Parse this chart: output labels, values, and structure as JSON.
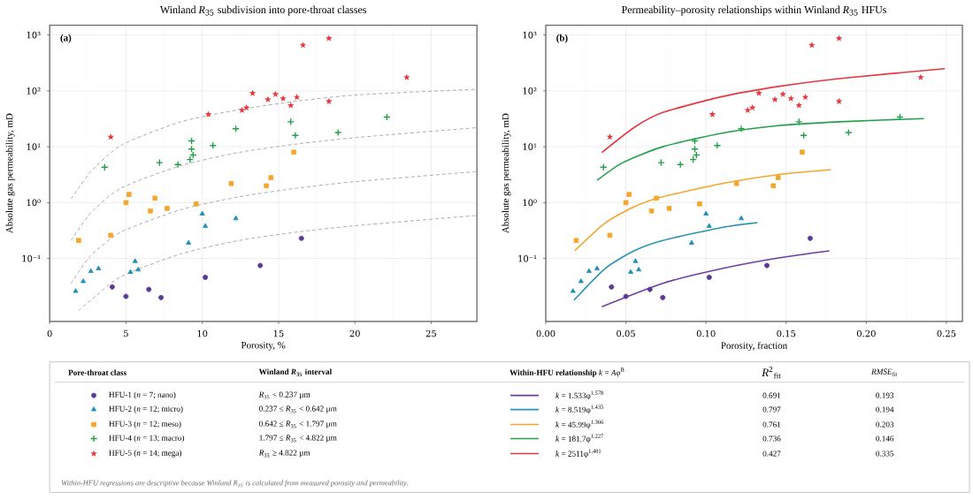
{
  "chart_data": [
    {
      "type": "scatter",
      "title": "Winland *R*$_{35}$ subdivision into pore-throat classes",
      "xlabel": "Porosity, %",
      "ylabel": "Absolute gas permeability, mD",
      "log": "y",
      "grid": true,
      "legend": "bottom",
      "legend_title": "Pore-throat class",
      "xlim": [
        0,
        28
      ],
      "ylim": [
        0.0075,
        1500
      ],
      "xticks": [
        0,
        5,
        10,
        15,
        20,
        25
      ],
      "yticks": [
        {
          "value": 0.1,
          "label": "10⁻¹"
        },
        {
          "value": 1,
          "label": "10⁰"
        },
        {
          "value": 10,
          "label": "10¹"
        },
        {
          "value": 100,
          "label": "10²"
        },
        {
          "value": 1000,
          "label": "10³"
        }
      ],
      "annotations": [
        "(a)",
        "Winland *R*$_{35}$ interval",
        "*R*$_{35}$ < 0.237 µm",
        "0.237 ≤ *R*$_{35}$ < 0.642 µm",
        "0.642 ≤ *R*$_{35}$ < 1.797 µm",
        "1.797 ≤ *R*$_{35}$ < 4.822 µm",
        "*R*$_{35}$ ≥ 4.822 µm",
        "Within-HFU regressions are descriptive because Winland R$_{35}$ is calculated from measured porosity and permeability."
      ],
      "series": [
        {
          "type": "line",
          "color": "#aaaaaa",
          "line_style": "dashed",
          "marker": "none",
          "x": [
            1.4,
            2.7,
            4.7,
            8.6,
            12.4,
            16.3,
            20.2,
            28
          ],
          "values": [
            1.16,
            3.6,
            10.7,
            28,
            46,
            66,
            85,
            107
          ]
        },
        {
          "type": "line",
          "color": "#aaaaaa",
          "line_style": "dashed",
          "marker": "none",
          "x": [
            1.4,
            2.7,
            4.7,
            8.6,
            12.4,
            16.3,
            20.2,
            28
          ],
          "values": [
            0.21,
            0.66,
            1.83,
            4.6,
            7.9,
            11.3,
            14.7,
            22
          ]
        },
        {
          "type": "line",
          "color": "#aaaaaa",
          "line_style": "dashed",
          "marker": "none",
          "x": [
            1.4,
            2.7,
            4.7,
            8.6,
            12.4,
            16.3,
            20.2,
            28
          ],
          "values": [
            0.036,
            0.113,
            0.3,
            0.75,
            1.27,
            1.83,
            2.4,
            3.6
          ]
        },
        {
          "type": "line",
          "color": "#aaaaaa",
          "line_style": "dashed",
          "marker": "none",
          "x": [
            1.9,
            2.7,
            4.7,
            8.6,
            12.4,
            16.3,
            20.2,
            28
          ],
          "values": [
            0.0116,
            0.018,
            0.048,
            0.121,
            0.21,
            0.3,
            0.39,
            0.59
          ]
        },
        {
          "name": "HFU-1 (*n* = 7; nano)",
          "type": "scatter",
          "color": "#5b3a96",
          "marker": "circle",
          "x": [
            4.1,
            5.0,
            6.5,
            7.3,
            10.2,
            13.8,
            16.5
          ],
          "values": [
            0.031,
            0.021,
            0.028,
            0.02,
            0.046,
            0.075,
            0.23
          ]
        },
        {
          "name": "HFU-2 (*n* = 12; micro)",
          "type": "scatter",
          "color": "#2090b5",
          "marker": "triangle",
          "x": [
            1.7,
            2.2,
            2.7,
            3.2,
            5.3,
            5.6,
            5.8,
            9.1,
            10.0,
            10.2,
            12.2
          ],
          "values": [
            0.026,
            0.039,
            0.059,
            0.066,
            0.057,
            0.089,
            0.063,
            0.19,
            0.63,
            0.38,
            0.52
          ]
        },
        {
          "name": "HFU-3 (*n* = 12; meso)",
          "type": "scatter",
          "color": "#f5a62a",
          "marker": "square",
          "x": [
            1.9,
            4.0,
            5.0,
            5.2,
            6.6,
            6.9,
            7.7,
            9.6,
            11.9,
            14.2,
            14.5,
            16.0
          ],
          "values": [
            0.21,
            0.26,
            1.0,
            1.4,
            0.71,
            1.2,
            0.79,
            0.95,
            2.2,
            2.0,
            2.8,
            8.0
          ]
        },
        {
          "name": "HFU-4 (*n* = 13; macro)",
          "type": "scatter",
          "color": "#23a04a",
          "marker": "cross",
          "x": [
            3.6,
            7.2,
            8.4,
            9.2,
            9.3,
            9.3,
            9.4,
            10.7,
            12.2,
            15.8,
            16.1,
            18.9,
            22.1
          ],
          "values": [
            4.3,
            5.2,
            4.8,
            5.9,
            12.7,
            9.1,
            7.1,
            10.5,
            21,
            28,
            16,
            18,
            34
          ]
        },
        {
          "name": "HFU-5 (*n* = 14; mega)",
          "type": "scatter",
          "color": "#e5383f",
          "marker": "star",
          "x": [
            4.0,
            10.4,
            12.6,
            12.9,
            13.3,
            14.3,
            14.8,
            15.3,
            15.8,
            16.2,
            16.6,
            18.3,
            18.3,
            23.4
          ],
          "values": [
            15,
            38,
            45,
            50,
            91,
            70,
            87,
            73,
            55,
            77,
            660,
            65,
            870,
            175
          ]
        }
      ]
    },
    {
      "type": "scatter",
      "title": "Permeability–porosity relationships within Winland *R*$_{35}$ HFUs",
      "xlabel": "Porosity, fraction",
      "ylabel": "Absolute gas permeability, mD",
      "log": "y",
      "grid": true,
      "legend": "bottom",
      "legend_title": "**Within-HFU relationship** *k* = *Aφ*$^{B}$",
      "xlim": [
        0,
        0.26
      ],
      "ylim": [
        0.0075,
        1500
      ],
      "xticks": [
        {
          "value": 0,
          "label": "0.00"
        },
        {
          "value": 0.05,
          "label": "0.05"
        },
        {
          "value": 0.1,
          "label": "0.10"
        },
        {
          "value": 0.15,
          "label": "0.15"
        },
        {
          "value": 0.2,
          "label": "0.20"
        },
        {
          "value": 0.25,
          "label": "0.25"
        }
      ],
      "yticks": [
        {
          "value": 0.1,
          "label": "10⁻¹"
        },
        {
          "value": 1,
          "label": "10⁰"
        },
        {
          "value": 10,
          "label": "10¹"
        },
        {
          "value": 100,
          "label": "10²"
        },
        {
          "value": 1000,
          "label": "10³"
        }
      ],
      "annotations": [
        "(b)",
        "*R*$^{2}$$_{fit}$",
        "*RMSE*$_{fit}$",
        "0.691",
        "0.797",
        "0.761",
        "0.736",
        "0.427",
        "0.193",
        "0.194",
        "0.203",
        "0.146",
        "0.335"
      ],
      "series": [
        {
          "type": "scatter",
          "color": "#5b3a96",
          "marker": "circle",
          "x": [
            0.041,
            0.05,
            0.065,
            0.073,
            0.102,
            0.138,
            0.165
          ],
          "values": [
            0.031,
            0.021,
            0.028,
            0.02,
            0.046,
            0.075,
            0.23
          ]
        },
        {
          "type": "scatter",
          "color": "#2090b5",
          "marker": "triangle",
          "x": [
            0.017,
            0.022,
            0.027,
            0.032,
            0.053,
            0.056,
            0.058,
            0.091,
            0.1,
            0.102,
            0.122
          ],
          "values": [
            0.026,
            0.039,
            0.059,
            0.066,
            0.057,
            0.089,
            0.063,
            0.19,
            0.63,
            0.38,
            0.52
          ]
        },
        {
          "type": "scatter",
          "color": "#f5a62a",
          "marker": "square",
          "x": [
            0.019,
            0.04,
            0.05,
            0.052,
            0.066,
            0.069,
            0.077,
            0.096,
            0.119,
            0.142,
            0.145,
            0.16
          ],
          "values": [
            0.21,
            0.26,
            1.0,
            1.4,
            0.71,
            1.2,
            0.79,
            0.95,
            2.2,
            2.0,
            2.8,
            8.0
          ]
        },
        {
          "type": "scatter",
          "color": "#23a04a",
          "marker": "cross",
          "x": [
            0.036,
            0.072,
            0.084,
            0.092,
            0.093,
            0.093,
            0.094,
            0.107,
            0.122,
            0.158,
            0.161,
            0.189,
            0.221
          ],
          "values": [
            4.3,
            5.2,
            4.8,
            5.9,
            12.7,
            9.1,
            7.1,
            10.5,
            21,
            28,
            16,
            18,
            34
          ]
        },
        {
          "type": "scatter",
          "color": "#e5383f",
          "marker": "star",
          "x": [
            0.04,
            0.104,
            0.126,
            0.129,
            0.133,
            0.143,
            0.148,
            0.153,
            0.158,
            0.162,
            0.166,
            0.183,
            0.183,
            0.234
          ],
          "values": [
            15,
            38,
            45,
            50,
            91,
            70,
            87,
            73,
            55,
            77,
            660,
            65,
            870,
            175
          ]
        },
        {
          "name": "*k* = 1.533φ$^{1.578}$",
          "type": "line",
          "color": "#6a3fa0",
          "line_style": "solid",
          "marker": "none",
          "x": [
            0.035,
            0.073,
            0.11,
            0.146,
            0.177
          ],
          "values": [
            0.0137,
            0.036,
            0.066,
            0.103,
            0.137
          ]
        },
        {
          "name": "*k* = 8.519φ$^{1.435}$",
          "type": "line",
          "color": "#2a93b0",
          "line_style": "solid",
          "marker": "none",
          "x": [
            0.0176,
            0.037,
            0.055,
            0.073,
            0.11,
            0.132
          ],
          "values": [
            0.018,
            0.066,
            0.137,
            0.21,
            0.36,
            0.44
          ]
        },
        {
          "name": "*k* = 45.99φ$^{1.366}$",
          "type": "line",
          "color": "#f5a62a",
          "line_style": "solid",
          "marker": "none",
          "x": [
            0.018,
            0.037,
            0.055,
            0.073,
            0.11,
            0.146,
            0.178
          ],
          "values": [
            0.137,
            0.43,
            0.84,
            1.27,
            2.2,
            3.2,
            3.9
          ]
        },
        {
          "name": "*k* = 181.7φ$^{1.227}$",
          "type": "line",
          "color": "#23a04a",
          "line_style": "solid",
          "marker": "none",
          "x": [
            0.032,
            0.048,
            0.073,
            0.11,
            0.146,
            0.183,
            0.236
          ],
          "values": [
            2.5,
            5.2,
            10,
            17.5,
            24,
            28,
            32
          ]
        },
        {
          "name": "*k* = 2511φ$^{1.481}$",
          "type": "line",
          "color": "#e5383f",
          "line_style": "solid",
          "marker": "none",
          "x": [
            0.035,
            0.055,
            0.073,
            0.11,
            0.146,
            0.183,
            0.249
          ],
          "values": [
            7.9,
            22,
            41,
            79,
            121,
            166,
            250
          ]
        }
      ]
    }
  ]
}
